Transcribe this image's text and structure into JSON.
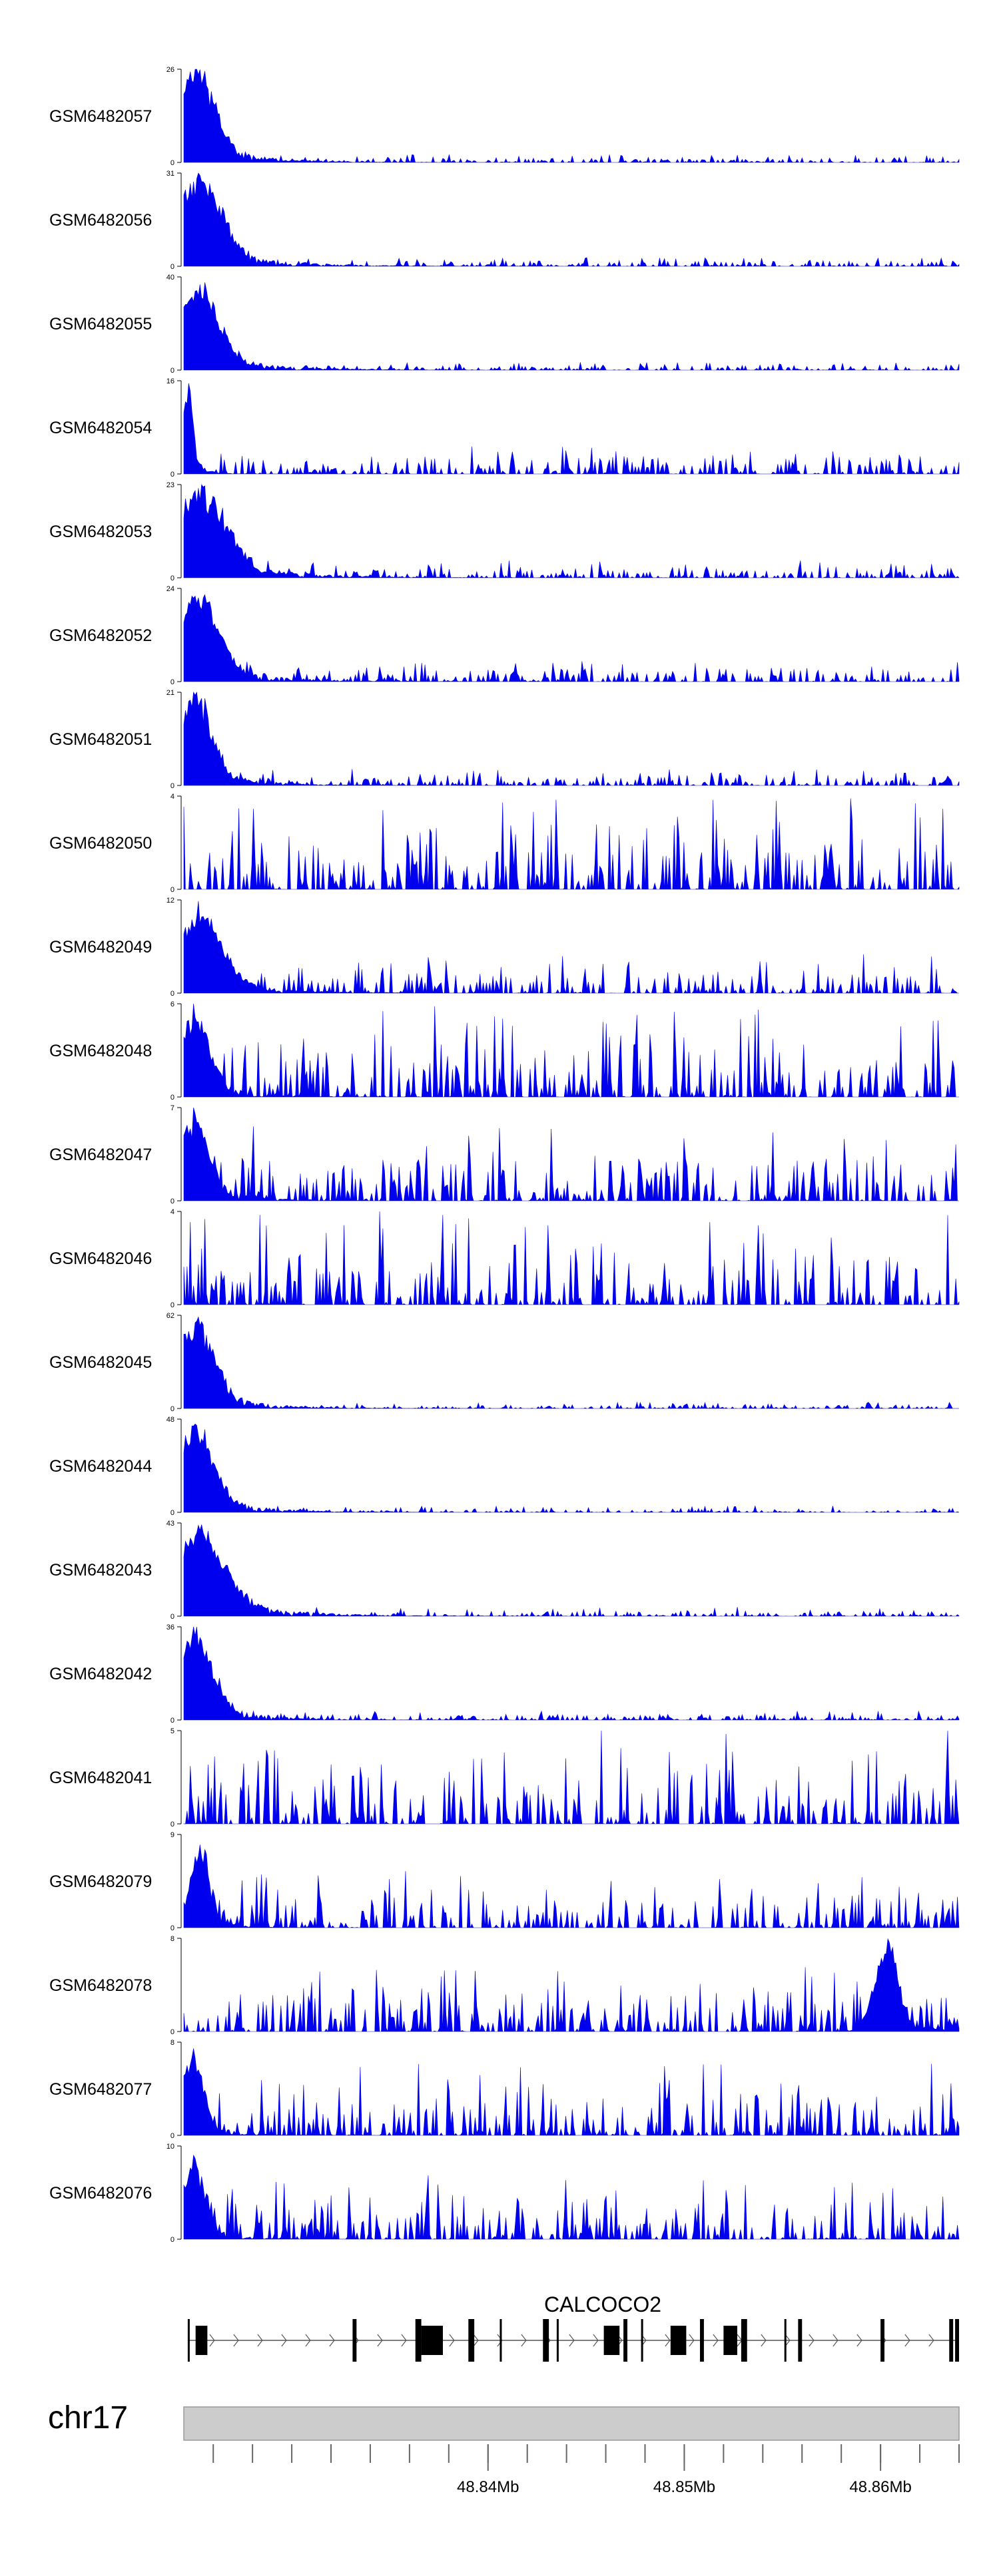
{
  "chart_data": {
    "type": "area",
    "region": {
      "chrom": "chr17",
      "start": 48824500,
      "end": 48864000
    },
    "fill_color": "#0000ee",
    "tracks": [
      {
        "name": "GSM6482057",
        "ymax": 26,
        "ymin": 0,
        "peak_x": 0.014,
        "peak_height": 1.0,
        "peak_width": 0.025,
        "noise": 0.06,
        "seed": 11
      },
      {
        "name": "GSM6482056",
        "ymax": 31,
        "ymin": 0,
        "peak_x": 0.016,
        "peak_height": 0.95,
        "peak_width": 0.03,
        "noise": 0.07,
        "seed": 23
      },
      {
        "name": "GSM6482055",
        "ymax": 40,
        "ymin": 0,
        "peak_x": 0.014,
        "peak_height": 0.9,
        "peak_width": 0.028,
        "noise": 0.06,
        "seed": 37
      },
      {
        "name": "GSM6482054",
        "ymax": 16,
        "ymin": 0,
        "peak_x": 0.005,
        "peak_height": 1.0,
        "peak_width": 0.006,
        "noise": 0.22,
        "seed": 41
      },
      {
        "name": "GSM6482053",
        "ymax": 23,
        "ymin": 0,
        "peak_x": 0.018,
        "peak_height": 0.95,
        "peak_width": 0.035,
        "noise": 0.14,
        "seed": 53
      },
      {
        "name": "GSM6482052",
        "ymax": 24,
        "ymin": 0,
        "peak_x": 0.014,
        "peak_height": 0.95,
        "peak_width": 0.028,
        "noise": 0.16,
        "seed": 67
      },
      {
        "name": "GSM6482051",
        "ymax": 21,
        "ymin": 0,
        "peak_x": 0.012,
        "peak_height": 1.0,
        "peak_width": 0.022,
        "noise": 0.13,
        "seed": 71
      },
      {
        "name": "GSM6482050",
        "ymax": 4,
        "ymin": 0,
        "peak_x": 0.0,
        "peak_height": 0.0,
        "peak_width": 0.01,
        "noise": 0.75,
        "seed": 83
      },
      {
        "name": "GSM6482049",
        "ymax": 12,
        "ymin": 0,
        "peak_x": 0.016,
        "peak_height": 0.85,
        "peak_width": 0.03,
        "noise": 0.3,
        "seed": 97
      },
      {
        "name": "GSM6482048",
        "ymax": 6,
        "ymin": 0,
        "peak_x": 0.012,
        "peak_height": 0.9,
        "peak_width": 0.02,
        "noise": 0.72,
        "seed": 101
      },
      {
        "name": "GSM6482047",
        "ymax": 7,
        "ymin": 0,
        "peak_x": 0.012,
        "peak_height": 0.9,
        "peak_width": 0.02,
        "noise": 0.6,
        "seed": 113
      },
      {
        "name": "GSM6482046",
        "ymax": 4,
        "ymin": 0,
        "peak_x": 0.0,
        "peak_height": 0.0,
        "peak_width": 0.01,
        "noise": 0.75,
        "seed": 127
      },
      {
        "name": "GSM6482045",
        "ymax": 62,
        "ymin": 0,
        "peak_x": 0.014,
        "peak_height": 0.95,
        "peak_width": 0.024,
        "noise": 0.05,
        "seed": 131
      },
      {
        "name": "GSM6482044",
        "ymax": 48,
        "ymin": 0,
        "peak_x": 0.012,
        "peak_height": 0.95,
        "peak_width": 0.024,
        "noise": 0.05,
        "seed": 139
      },
      {
        "name": "GSM6482043",
        "ymax": 43,
        "ymin": 0,
        "peak_x": 0.016,
        "peak_height": 0.9,
        "peak_width": 0.035,
        "noise": 0.07,
        "seed": 149
      },
      {
        "name": "GSM6482042",
        "ymax": 36,
        "ymin": 0,
        "peak_x": 0.012,
        "peak_height": 0.95,
        "peak_width": 0.024,
        "noise": 0.07,
        "seed": 157
      },
      {
        "name": "GSM6482041",
        "ymax": 5,
        "ymin": 0,
        "peak_x": 0.0,
        "peak_height": 0.0,
        "peak_width": 0.01,
        "noise": 0.8,
        "seed": 163
      },
      {
        "name": "GSM6482079",
        "ymax": 9,
        "ymin": 0,
        "peak_x": 0.02,
        "peak_height": 0.9,
        "peak_width": 0.012,
        "noise": 0.45,
        "seed": 173
      },
      {
        "name": "GSM6482078",
        "ymax": 8,
        "ymin": 0,
        "peak_x": 0.905,
        "peak_height": 0.95,
        "peak_width": 0.015,
        "noise": 0.5,
        "seed": 181
      },
      {
        "name": "GSM6482077",
        "ymax": 8,
        "ymin": 0,
        "peak_x": 0.01,
        "peak_height": 0.85,
        "peak_width": 0.015,
        "noise": 0.55,
        "seed": 191
      },
      {
        "name": "GSM6482076",
        "ymax": 10,
        "ymin": 0,
        "peak_x": 0.012,
        "peak_height": 0.8,
        "peak_width": 0.015,
        "noise": 0.5,
        "seed": 197
      }
    ],
    "gene": {
      "name": "CALCOCO2",
      "start": 48824700,
      "end": 48864000,
      "exons": [
        {
          "start": 48824700,
          "end": 48824800
        },
        {
          "start": 48825100,
          "end": 48825700
        },
        {
          "start": 48833100,
          "end": 48833300
        },
        {
          "start": 48836300,
          "end": 48836600
        },
        {
          "start": 48836600,
          "end": 48837700
        },
        {
          "start": 48839000,
          "end": 48839300
        },
        {
          "start": 48840600,
          "end": 48840700
        },
        {
          "start": 48842800,
          "end": 48843100
        },
        {
          "start": 48843500,
          "end": 48843600
        },
        {
          "start": 48845900,
          "end": 48846700
        },
        {
          "start": 48846900,
          "end": 48847100
        },
        {
          "start": 48847800,
          "end": 48847900
        },
        {
          "start": 48849300,
          "end": 48850100
        },
        {
          "start": 48850800,
          "end": 48851000
        },
        {
          "start": 48852000,
          "end": 48852700
        },
        {
          "start": 48852900,
          "end": 48853200
        },
        {
          "start": 48855100,
          "end": 48855200
        },
        {
          "start": 48855800,
          "end": 48856000
        },
        {
          "start": 48860000,
          "end": 48860200
        },
        {
          "start": 48863500,
          "end": 48863700
        },
        {
          "start": 48863800,
          "end": 48864000
        }
      ],
      "strand": "+"
    },
    "chromosome": "chr17",
    "x_ticks": [
      {
        "value": 48840000,
        "label": "48.84Mb"
      },
      {
        "value": 48850000,
        "label": "48.85Mb"
      },
      {
        "value": 48860000,
        "label": "48.86Mb"
      }
    ],
    "minor_tick_step": 2000
  }
}
